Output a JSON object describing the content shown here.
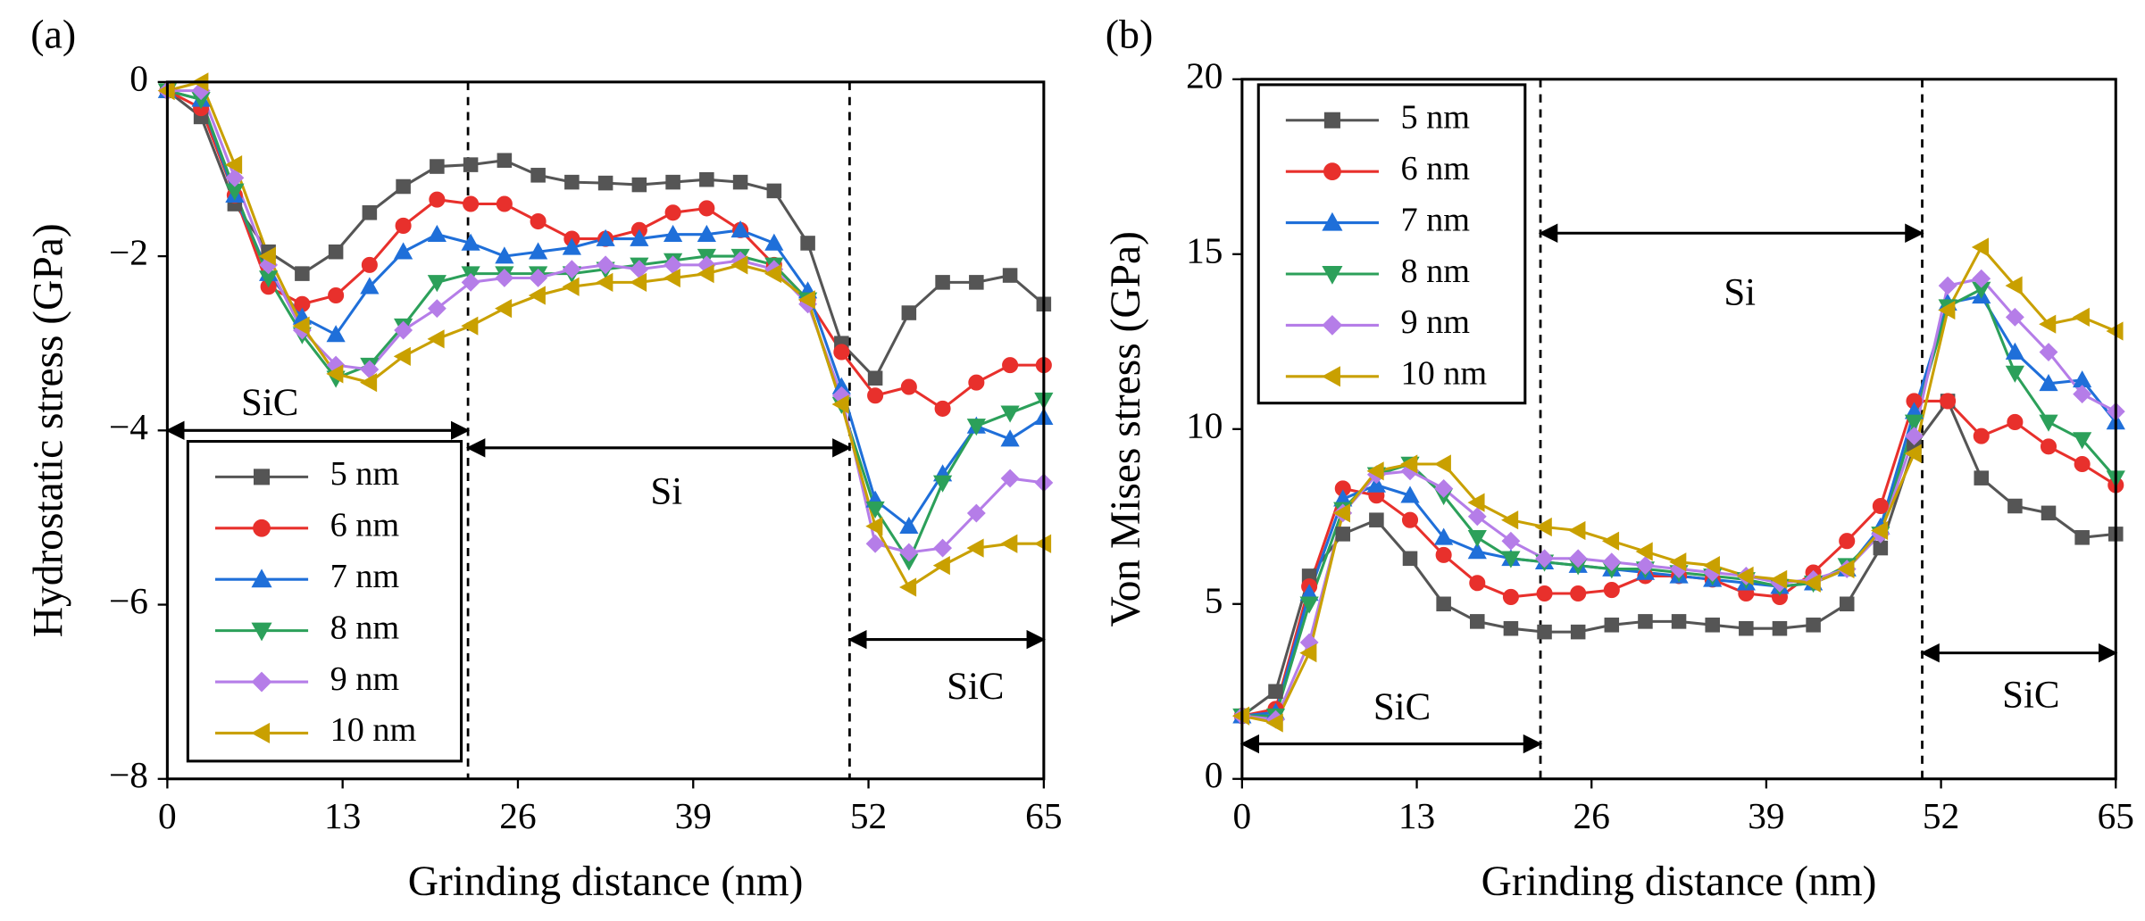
{
  "chart_data": [
    {
      "type": "line",
      "panel": "(a)",
      "xlabel": "Grinding distance (nm)",
      "ylabel": "Hydrostatic stress (GPa)",
      "x": [
        0,
        2.5,
        5,
        7.5,
        10,
        12.5,
        15,
        17.5,
        20,
        22.5,
        25,
        27.5,
        30,
        32.5,
        35,
        37.5,
        40,
        42.5,
        45,
        47.5,
        50,
        52.5,
        55,
        57.5,
        60,
        62.5,
        65
      ],
      "xlim": [
        0,
        65
      ],
      "xticks": [
        0,
        13,
        26,
        39,
        52,
        65
      ],
      "ylim": [
        -8,
        0
      ],
      "yticks": [
        {
          "value": -8,
          "label": "−8"
        },
        {
          "value": -6,
          "label": "−6"
        },
        {
          "value": -4,
          "label": "−4"
        },
        {
          "value": -2,
          "label": "−2"
        },
        0
      ],
      "dividers": [
        22.3,
        50.6
      ],
      "regions": [
        {
          "label": "SiC",
          "x": [
            0,
            22.3
          ]
        },
        {
          "label": "Si",
          "x": [
            22.3,
            50.6
          ]
        },
        {
          "label": "SiC",
          "x": [
            50.6,
            65
          ]
        }
      ],
      "legend": "lower left",
      "series": [
        {
          "name": "5 nm",
          "color": "#555555",
          "marker": "square",
          "values": [
            -0.1,
            -0.4,
            -1.4,
            -1.95,
            -2.2,
            -1.95,
            -1.5,
            -1.2,
            -0.97,
            -0.95,
            -0.9,
            -1.07,
            -1.15,
            -1.16,
            -1.18,
            -1.15,
            -1.12,
            -1.15,
            -1.25,
            -1.85,
            -3.0,
            -3.4,
            -2.65,
            -2.3,
            -2.3,
            -2.22,
            -2.55
          ]
        },
        {
          "name": "6 nm",
          "color": "#e8302c",
          "marker": "circle",
          "values": [
            -0.1,
            -0.3,
            -1.3,
            -2.35,
            -2.55,
            -2.45,
            -2.1,
            -1.65,
            -1.35,
            -1.4,
            -1.4,
            -1.6,
            -1.8,
            -1.8,
            -1.7,
            -1.5,
            -1.45,
            -1.7,
            -2.1,
            -2.5,
            -3.1,
            -3.6,
            -3.5,
            -3.75,
            -3.45,
            -3.25,
            -3.25
          ]
        },
        {
          "name": "7 nm",
          "color": "#1f6fd9",
          "marker": "triangle-up",
          "values": [
            -0.1,
            -0.2,
            -1.3,
            -2.2,
            -2.7,
            -2.9,
            -2.35,
            -1.95,
            -1.75,
            -1.85,
            -2.0,
            -1.95,
            -1.9,
            -1.8,
            -1.8,
            -1.75,
            -1.75,
            -1.7,
            -1.85,
            -2.4,
            -3.5,
            -4.8,
            -5.1,
            -4.5,
            -3.95,
            -4.1,
            -3.85
          ]
        },
        {
          "name": "8 nm",
          "color": "#2ca05a",
          "marker": "triangle-down",
          "values": [
            -0.1,
            -0.2,
            -1.25,
            -2.25,
            -2.9,
            -3.4,
            -3.25,
            -2.8,
            -2.3,
            -2.2,
            -2.2,
            -2.2,
            -2.2,
            -2.15,
            -2.1,
            -2.05,
            -2.0,
            -2.0,
            -2.1,
            -2.5,
            -3.7,
            -4.9,
            -5.5,
            -4.6,
            -3.95,
            -3.8,
            -3.65
          ]
        },
        {
          "name": "9 nm",
          "color": "#b57de8",
          "marker": "diamond",
          "values": [
            -0.1,
            -0.1,
            -1.1,
            -2.1,
            -2.85,
            -3.25,
            -3.3,
            -2.85,
            -2.6,
            -2.3,
            -2.25,
            -2.25,
            -2.15,
            -2.1,
            -2.15,
            -2.1,
            -2.1,
            -2.05,
            -2.15,
            -2.55,
            -3.6,
            -5.3,
            -5.4,
            -5.35,
            -4.95,
            -4.55,
            -4.6
          ]
        },
        {
          "name": "10 nm",
          "color": "#c9a000",
          "marker": "triangle-left",
          "values": [
            -0.1,
            0,
            -0.95,
            -2.0,
            -2.8,
            -3.35,
            -3.45,
            -3.15,
            -2.95,
            -2.8,
            -2.6,
            -2.45,
            -2.35,
            -2.3,
            -2.3,
            -2.25,
            -2.2,
            -2.1,
            -2.2,
            -2.5,
            -3.7,
            -5.1,
            -5.8,
            -5.55,
            -5.35,
            -5.3,
            -5.3
          ]
        }
      ]
    },
    {
      "type": "line",
      "panel": "(b)",
      "xlabel": "Grinding distance (nm)",
      "ylabel": "Von Mises stress (GPa)",
      "x": [
        0,
        2.5,
        5,
        7.5,
        10,
        12.5,
        15,
        17.5,
        20,
        22.5,
        25,
        27.5,
        30,
        32.5,
        35,
        37.5,
        40,
        42.5,
        45,
        47.5,
        50,
        52.5,
        55,
        57.5,
        60,
        62.5,
        65
      ],
      "xlim": [
        0,
        65
      ],
      "xticks": [
        0,
        13,
        26,
        39,
        52,
        65
      ],
      "ylim": [
        0,
        20
      ],
      "yticks": [
        0,
        5,
        10,
        15,
        20
      ],
      "dividers": [
        22.2,
        50.6
      ],
      "regions": [
        {
          "label": "SiC",
          "x": [
            0,
            22.2
          ]
        },
        {
          "label": "Si",
          "x": [
            22.2,
            50.6
          ]
        },
        {
          "label": "SiC",
          "x": [
            50.6,
            65
          ]
        }
      ],
      "legend": "upper left",
      "series": [
        {
          "name": "5 nm",
          "color": "#555555",
          "marker": "square",
          "values": [
            1.8,
            2.5,
            5.8,
            7.0,
            7.4,
            6.3,
            5.0,
            4.5,
            4.3,
            4.2,
            4.2,
            4.4,
            4.5,
            4.5,
            4.4,
            4.3,
            4.3,
            4.4,
            5.0,
            6.6,
            9.5,
            10.8,
            8.6,
            7.8,
            7.6,
            6.9,
            7.0
          ]
        },
        {
          "name": "6 nm",
          "color": "#e8302c",
          "marker": "circle",
          "values": [
            1.8,
            2.0,
            5.5,
            8.3,
            8.1,
            7.4,
            6.4,
            5.6,
            5.2,
            5.3,
            5.3,
            5.4,
            5.8,
            5.8,
            5.7,
            5.3,
            5.2,
            5.9,
            6.8,
            7.8,
            10.8,
            10.8,
            9.8,
            10.2,
            9.5,
            9.0,
            8.4
          ]
        },
        {
          "name": "7 nm",
          "color": "#1f6fd9",
          "marker": "triangle-up",
          "values": [
            1.8,
            1.9,
            5.3,
            8.0,
            8.4,
            8.1,
            6.9,
            6.5,
            6.3,
            6.2,
            6.1,
            6.0,
            5.9,
            5.8,
            5.7,
            5.6,
            5.5,
            5.6,
            6.0,
            7.2,
            10.5,
            13.6,
            13.8,
            12.2,
            11.3,
            11.4,
            10.2
          ]
        },
        {
          "name": "8 nm",
          "color": "#2ca05a",
          "marker": "triangle-down",
          "values": [
            1.8,
            1.8,
            5.0,
            7.7,
            8.7,
            9.0,
            8.1,
            6.9,
            6.3,
            6.2,
            6.1,
            6.0,
            6.0,
            5.9,
            5.8,
            5.7,
            5.5,
            5.6,
            6.1,
            7.0,
            10.2,
            13.5,
            14.0,
            11.6,
            10.2,
            9.7,
            8.6
          ]
        },
        {
          "name": "9 nm",
          "color": "#b57de8",
          "marker": "diamond",
          "values": [
            1.8,
            1.7,
            3.9,
            7.6,
            8.7,
            8.8,
            8.3,
            7.5,
            6.8,
            6.3,
            6.3,
            6.2,
            6.1,
            6.0,
            5.9,
            5.8,
            5.6,
            5.7,
            6.0,
            7.0,
            9.8,
            14.1,
            14.3,
            13.2,
            12.2,
            11.0,
            10.5
          ]
        },
        {
          "name": "10 nm",
          "color": "#c9a000",
          "marker": "triangle-left",
          "values": [
            1.8,
            1.6,
            3.6,
            7.6,
            8.8,
            9.0,
            9.0,
            7.9,
            7.4,
            7.2,
            7.1,
            6.8,
            6.5,
            6.2,
            6.1,
            5.8,
            5.7,
            5.6,
            6.0,
            7.1,
            9.3,
            13.4,
            15.2,
            14.1,
            13.0,
            13.2,
            12.8
          ]
        }
      ]
    }
  ]
}
